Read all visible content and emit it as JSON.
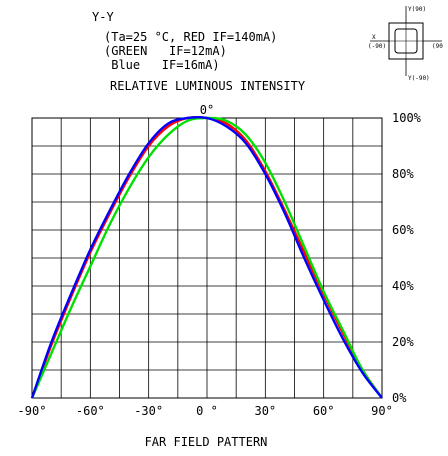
{
  "header": {
    "axis_name": "Y-Y",
    "condition_lines": [
      "(Ta=25 °C, RED IF=140mA)",
      "(GREEN   IF=12mA)",
      " Blue   IF=16mA)"
    ],
    "subtitle": "RELATIVE LUMINOUS INTENSITY"
  },
  "orientation_icon": {
    "top_label": "Y(90)",
    "left_label_top": "X",
    "left_label_bottom": "(-90)",
    "right_label": "(90",
    "bottom_label": "Y(-90)"
  },
  "chart_data": {
    "type": "line",
    "title": "RELATIVE LUMINOUS INTENSITY",
    "xlabel": "FAR FIELD PATTERN",
    "ylabel": "",
    "xlim": [
      -90,
      90
    ],
    "ylim": [
      0,
      100
    ],
    "grid": true,
    "x_ticks": [
      {
        "value": -90,
        "label": "-90°"
      },
      {
        "value": -60,
        "label": "-60°"
      },
      {
        "value": -30,
        "label": "-30°"
      },
      {
        "value": 0,
        "label": "0 °"
      },
      {
        "value": 30,
        "label": "30°"
      },
      {
        "value": 60,
        "label": "60°"
      },
      {
        "value": 90,
        "label": "90°"
      }
    ],
    "top_label": "0°",
    "y_ticks": [
      {
        "value": 0,
        "label": "0%"
      },
      {
        "value": 20,
        "label": "20%"
      },
      {
        "value": 40,
        "label": "40%"
      },
      {
        "value": 60,
        "label": "60%"
      },
      {
        "value": 80,
        "label": "80%"
      },
      {
        "value": 100,
        "label": "100%"
      }
    ],
    "series": [
      {
        "color": "#ff0000",
        "x": [
          -90,
          -80,
          -70,
          -60,
          -50,
          -40,
          -30,
          -20,
          -10,
          0,
          10,
          20,
          30,
          40,
          50,
          60,
          70,
          80,
          90
        ],
        "y": [
          0,
          19,
          36,
          52,
          66,
          79,
          90,
          97,
          100,
          100,
          98,
          92,
          81,
          67,
          52,
          37,
          23,
          10,
          0
        ]
      },
      {
        "color": "#00e000",
        "x": [
          -90,
          -80,
          -70,
          -60,
          -50,
          -40,
          -30,
          -20,
          -10,
          0,
          10,
          20,
          30,
          40,
          50,
          60,
          70,
          80,
          90
        ],
        "y": [
          0,
          16,
          32,
          47,
          62,
          75,
          86,
          94,
          99,
          100,
          99,
          94,
          84,
          70,
          54,
          38,
          24,
          10,
          0
        ]
      },
      {
        "color": "#0000ff",
        "x": [
          -90,
          -80,
          -70,
          -60,
          -50,
          -40,
          -30,
          -20,
          -10,
          0,
          10,
          20,
          30,
          40,
          50,
          60,
          70,
          80,
          90
        ],
        "y": [
          0,
          20,
          37,
          53,
          67,
          80,
          91,
          98,
          100,
          100,
          97,
          91,
          80,
          66,
          50,
          35,
          21,
          9,
          0
        ]
      }
    ]
  }
}
